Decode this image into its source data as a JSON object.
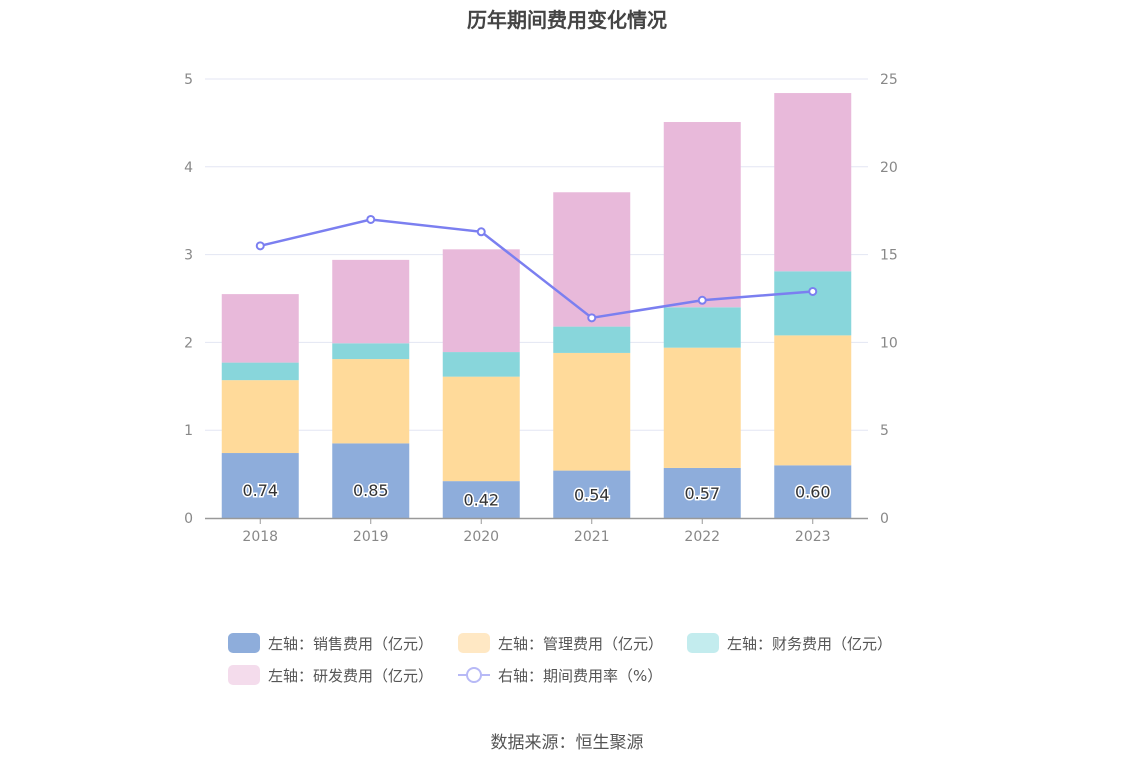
{
  "chart_data": {
    "type": "bar",
    "stacked": true,
    "title": "历年期间费用变化情况",
    "categories": [
      "2018",
      "2019",
      "2020",
      "2021",
      "2022",
      "2023"
    ],
    "y_left": {
      "ticks": [
        "0",
        "1",
        "2",
        "3",
        "4",
        "5"
      ],
      "ylim": [
        0,
        5
      ]
    },
    "y_right": {
      "ticks": [
        "0",
        "5",
        "10",
        "15",
        "20",
        "25"
      ],
      "ylim": [
        0,
        25
      ]
    },
    "grid": true,
    "legend_position": "bottom",
    "series": [
      {
        "name": "左轴：销售费用（亿元）",
        "axis": "left",
        "color": "#8eaddb",
        "values": [
          0.74,
          0.85,
          0.42,
          0.54,
          0.57,
          0.6
        ],
        "labels": [
          "0.74",
          "0.85",
          "0.42",
          "0.54",
          "0.57",
          "0.60"
        ]
      },
      {
        "name": "左轴：管理费用（亿元）",
        "axis": "left",
        "color": "#ffda9a",
        "values": [
          0.83,
          0.96,
          1.19,
          1.34,
          1.37,
          1.48
        ]
      },
      {
        "name": "左轴：财务费用（亿元）",
        "axis": "left",
        "color": "#88d6db",
        "values": [
          0.2,
          0.18,
          0.28,
          0.3,
          0.46,
          0.73
        ]
      },
      {
        "name": "左轴：研发费用（亿元）",
        "axis": "left",
        "color": "#e8b9da",
        "values": [
          0.78,
          0.95,
          1.17,
          1.53,
          2.11,
          2.03
        ]
      },
      {
        "name": "右轴：期间费用率（%）",
        "axis": "right",
        "type": "line",
        "color": "#7b7ff0",
        "values": [
          15.5,
          17.0,
          16.3,
          11.4,
          12.4,
          12.9
        ]
      }
    ],
    "legend_rows": [
      [
        0,
        1,
        2
      ],
      [
        3,
        4
      ]
    ]
  },
  "source": "数据来源：恒生聚源"
}
